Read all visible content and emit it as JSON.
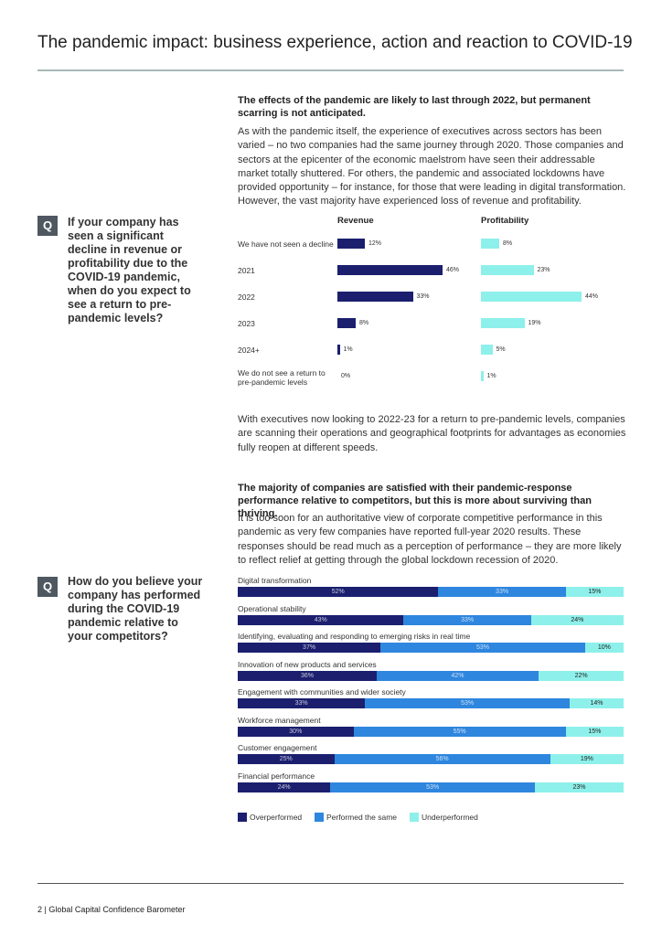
{
  "header": {
    "title": "The pandemic impact: business experience, action and reaction to COVID-19"
  },
  "sections": [
    {
      "heading": "The effects of the pandemic are likely to last through 2022, but permanent scarring is not anticipated.",
      "body": "As with the pandemic itself, the experience of executives across sectors has been varied – no two companies had the same journey through 2020. Those companies and sectors at the epicenter of the economic maelstrom have seen their addressable market totally shuttered. For others, the pandemic and associated lockdowns have provided opportunity – for instance, for those that were leading in digital transformation. However, the vast majority have experienced loss of revenue and profitability.",
      "question_marker": "Q",
      "question": "If your company has seen a significant decline in revenue or profitability due to the COVID-19 pandemic, when do you expect to see a return to pre-pandemic levels?",
      "note": "With executives now looking to 2022-23 for a return to pre-pandemic levels, companies are scanning their operations and geographical footprints for advantages as economies fully reopen at different speeds."
    },
    {
      "heading": "The majority of companies are satisfied with their pandemic-response performance relative to competitors, but this is more about surviving than thriving.",
      "body": "It is too soon for an authoritative view of corporate competitive performance in this pandemic as very few companies have reported full-year 2020 results. These responses should be read much as a perception of performance – they are more likely to reflect relief at getting through the global lockdown recession of 2020.",
      "question_marker": "Q",
      "question": "How do you believe your company has performed during the COVID-19 pandemic relative to your competitors?"
    }
  ],
  "chart_data": [
    {
      "type": "bar",
      "orientation": "horizontal",
      "categories": [
        "We have not seen a decline",
        "2021",
        "2022",
        "2023",
        "2024+",
        "We do not see a return to pre-pandemic levels"
      ],
      "series": [
        {
          "name": "Revenue",
          "color": "#1b1f6e",
          "values": [
            12,
            46,
            33,
            8,
            1,
            0
          ],
          "value_labels": [
            "12%",
            "46%",
            "33%",
            "8%",
            "1%",
            "0%"
          ]
        },
        {
          "name": "Profitability",
          "color": "#8ef0ea",
          "values": [
            8,
            23,
            44,
            19,
            5,
            1
          ],
          "value_labels": [
            "8%",
            "23%",
            "44%",
            "19%",
            "5%",
            "1%"
          ]
        }
      ]
    },
    {
      "type": "stacked_bar",
      "orientation": "horizontal",
      "categories": [
        "Digital transformation",
        "Operational stability",
        "Identifying, evaluating and responding to emerging risks in real time",
        "Innovation of new products and services",
        "Engagement with communities and wider society",
        "Workforce management",
        "Customer engagement",
        "Financial performance"
      ],
      "series": [
        {
          "name": "Overperformed",
          "color": "#1b1f6e",
          "values": [
            52,
            43,
            37,
            36,
            33,
            30,
            25,
            24
          ],
          "value_labels": [
            "52%",
            "43%",
            "37%",
            "36%",
            "33%",
            "30%",
            "25%",
            "24%"
          ]
        },
        {
          "name": "Performed the same",
          "color": "#2e86de",
          "values": [
            33,
            33,
            53,
            42,
            53,
            55,
            56,
            53
          ],
          "value_labels": [
            "33%",
            "33%",
            "53%",
            "42%",
            "53%",
            "55%",
            "56%",
            "53%"
          ]
        },
        {
          "name": "Underperformed",
          "color": "#8ef0ea",
          "values": [
            15,
            24,
            10,
            22,
            14,
            15,
            19,
            23
          ],
          "value_labels": [
            "15%",
            "24%",
            "10%",
            "22%",
            "14%",
            "15%",
            "19%",
            "23%"
          ]
        }
      ]
    }
  ],
  "footer": {
    "page": "2",
    "separator": "|",
    "publication": "Global Capital Confidence Barometer"
  }
}
